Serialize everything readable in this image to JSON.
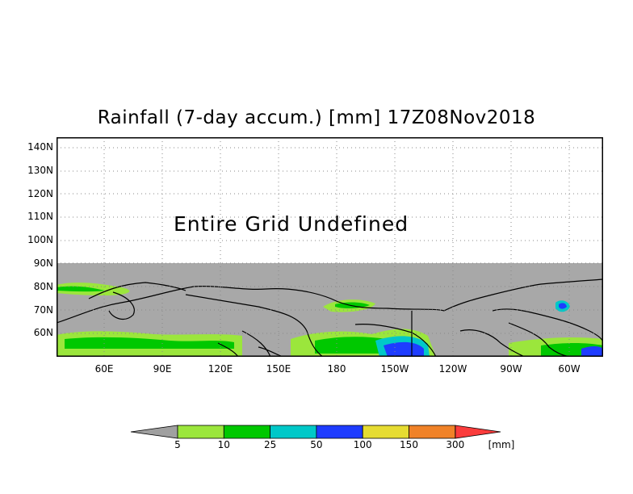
{
  "title": "Rainfall (7-day accum.) [mm] 17Z08Nov2018",
  "undefined_text": "Entire Grid Undefined",
  "lat_labels": [
    "140N",
    "130N",
    "120N",
    "110N",
    "100N",
    "90N",
    "80N",
    "70N",
    "60N"
  ],
  "lon_labels": [
    "60E",
    "90E",
    "120E",
    "150E",
    "180",
    "150W",
    "120W",
    "90W",
    "60W"
  ],
  "legend": {
    "values": [
      "5",
      "10",
      "25",
      "50",
      "100",
      "150",
      "300"
    ],
    "unit": "[mm]",
    "colors": [
      "#a0a0a0",
      "#9be63c",
      "#00c800",
      "#00c8c8",
      "#1e3cff",
      "#e6dc32",
      "#f08228",
      "#fa3c3c"
    ]
  },
  "colors": {
    "undefined_fill": "#a8a8a8",
    "grid": "#888888"
  }
}
